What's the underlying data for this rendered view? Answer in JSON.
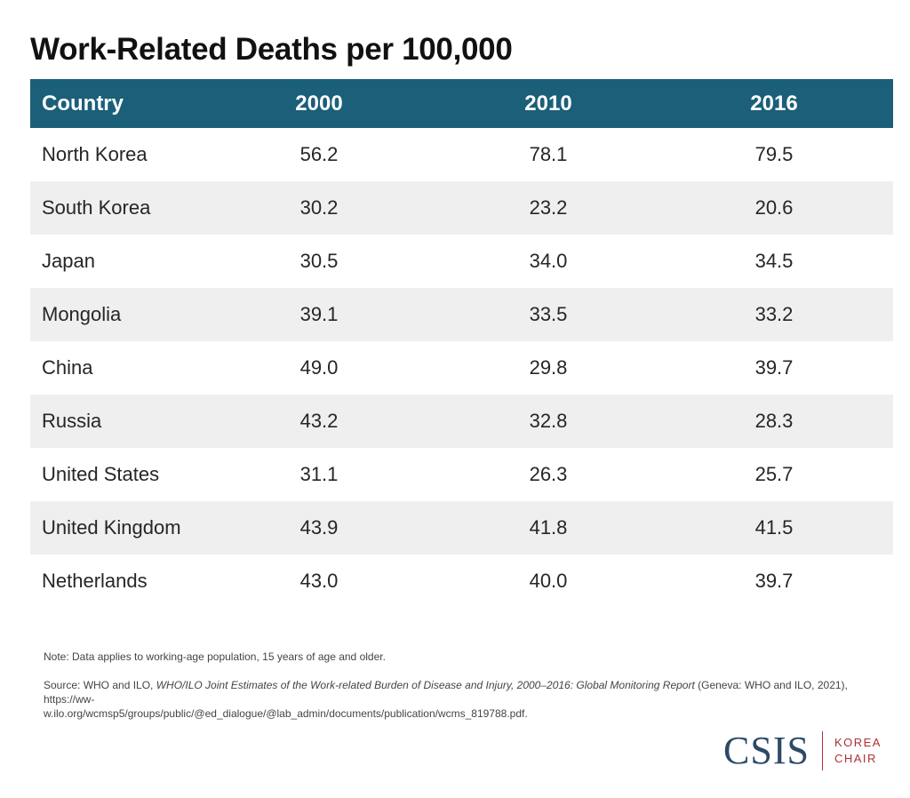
{
  "chart_data": {
    "type": "table",
    "title": "Work-Related Deaths per 100,000",
    "columns": [
      "Country",
      "2000",
      "2010",
      "2016"
    ],
    "rows": [
      [
        "North Korea",
        "56.2",
        "78.1",
        "79.5"
      ],
      [
        "South Korea",
        "30.2",
        "23.2",
        "20.6"
      ],
      [
        "Japan",
        "30.5",
        "34.0",
        "34.5"
      ],
      [
        "Mongolia",
        "39.1",
        "33.5",
        "33.2"
      ],
      [
        "China",
        "49.0",
        "29.8",
        "39.7"
      ],
      [
        "Russia",
        "43.2",
        "32.8",
        "28.3"
      ],
      [
        "United States",
        "31.1",
        "26.3",
        "25.7"
      ],
      [
        "United Kingdom",
        "43.9",
        "41.8",
        "41.5"
      ],
      [
        "Netherlands",
        "43.0",
        "40.0",
        "39.7"
      ]
    ]
  },
  "colors": {
    "header_bg": "#1b5f79",
    "stripe_bg": "#efefef",
    "logo_blue": "#2b4a66",
    "logo_red": "#b03030"
  },
  "note": "Note: Data applies to working-age population, 15 years of age and older.",
  "source": {
    "prefix": "Source: WHO and ILO, ",
    "italic": "WHO/ILO Joint Estimates of the Work-related Burden of Disease and Injury, 2000–2016: Global Monitoring Report",
    "suffix": " (Geneva: WHO and ILO, 2021), https://ww-",
    "line2": "w.ilo.org/wcmsp5/groups/public/@ed_dialogue/@lab_admin/documents/publication/wcms_819788.pdf."
  },
  "logo": {
    "mark": "CSIS",
    "sub_line1": "KOREA",
    "sub_line2": "CHAIR"
  }
}
